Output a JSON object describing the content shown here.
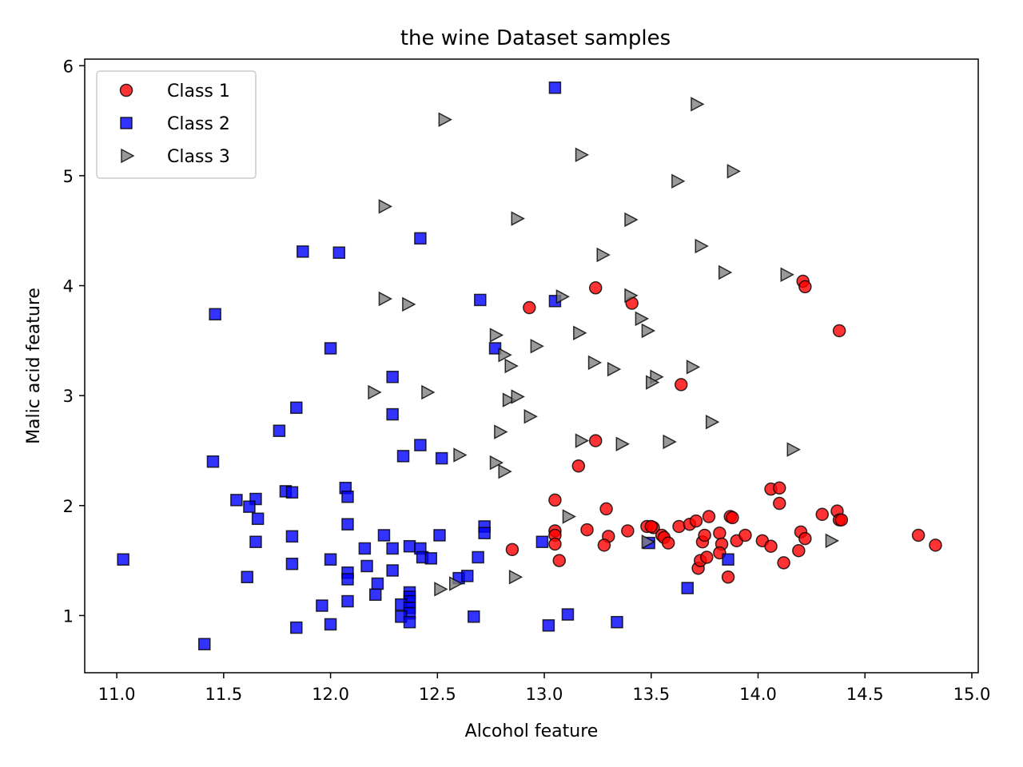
{
  "chart_data": {
    "type": "scatter",
    "title": "the wine Dataset samples",
    "xlabel": "Alcohol feature",
    "ylabel": "Malic acid feature",
    "xlim": [
      10.85,
      15.03
    ],
    "ylim": [
      0.48,
      6.06
    ],
    "xticks": [
      "11.0",
      "11.5",
      "12.0",
      "12.5",
      "13.0",
      "13.5",
      "14.0",
      "14.5",
      "15.0"
    ],
    "yticks": [
      "1",
      "2",
      "3",
      "4",
      "5",
      "6"
    ],
    "grid": false,
    "legend_position": "top-left",
    "series": [
      {
        "name": "Class 1",
        "marker": "circle",
        "color": "#ff0000",
        "points": [
          [
            12.93,
            3.8
          ],
          [
            13.24,
            3.98
          ],
          [
            13.41,
            3.84
          ],
          [
            14.21,
            4.04
          ],
          [
            14.22,
            3.99
          ],
          [
            14.38,
            3.59
          ],
          [
            13.64,
            3.1
          ],
          [
            13.24,
            2.59
          ],
          [
            13.16,
            2.36
          ],
          [
            14.06,
            2.15
          ],
          [
            14.1,
            2.16
          ],
          [
            14.1,
            2.02
          ],
          [
            13.05,
            2.05
          ],
          [
            13.05,
            1.77
          ],
          [
            13.05,
            1.73
          ],
          [
            13.05,
            1.65
          ],
          [
            13.07,
            1.5
          ],
          [
            12.85,
            1.6
          ],
          [
            13.2,
            1.78
          ],
          [
            13.29,
            1.97
          ],
          [
            13.3,
            1.72
          ],
          [
            13.28,
            1.64
          ],
          [
            13.39,
            1.77
          ],
          [
            13.48,
            1.81
          ],
          [
            13.51,
            1.8
          ],
          [
            13.5,
            1.81
          ],
          [
            13.55,
            1.73
          ],
          [
            13.56,
            1.71
          ],
          [
            13.58,
            1.66
          ],
          [
            13.63,
            1.81
          ],
          [
            13.68,
            1.83
          ],
          [
            13.71,
            1.86
          ],
          [
            13.72,
            1.43
          ],
          [
            13.73,
            1.5
          ],
          [
            13.74,
            1.67
          ],
          [
            13.75,
            1.73
          ],
          [
            13.76,
            1.53
          ],
          [
            13.77,
            1.9
          ],
          [
            13.82,
            1.75
          ],
          [
            13.83,
            1.65
          ],
          [
            13.82,
            1.57
          ],
          [
            13.86,
            1.35
          ],
          [
            13.87,
            1.9
          ],
          [
            13.88,
            1.89
          ],
          [
            13.9,
            1.68
          ],
          [
            13.94,
            1.73
          ],
          [
            14.02,
            1.68
          ],
          [
            14.06,
            1.63
          ],
          [
            14.12,
            1.48
          ],
          [
            14.19,
            1.59
          ],
          [
            14.2,
            1.76
          ],
          [
            14.22,
            1.7
          ],
          [
            14.3,
            1.92
          ],
          [
            14.37,
            1.95
          ],
          [
            14.38,
            1.87
          ],
          [
            14.39,
            1.87
          ],
          [
            14.75,
            1.73
          ],
          [
            14.83,
            1.64
          ]
        ]
      },
      {
        "name": "Class 2",
        "marker": "square",
        "color": "#0000ff",
        "points": [
          [
            13.05,
            5.8
          ],
          [
            12.42,
            4.43
          ],
          [
            11.87,
            4.31
          ],
          [
            12.04,
            4.3
          ],
          [
            11.46,
            3.74
          ],
          [
            12.7,
            3.87
          ],
          [
            13.05,
            3.86
          ],
          [
            12.0,
            3.43
          ],
          [
            12.77,
            3.43
          ],
          [
            12.29,
            3.17
          ],
          [
            11.84,
            2.89
          ],
          [
            12.29,
            2.83
          ],
          [
            11.76,
            2.68
          ],
          [
            12.42,
            2.55
          ],
          [
            12.34,
            2.45
          ],
          [
            12.52,
            2.43
          ],
          [
            11.45,
            2.4
          ],
          [
            12.07,
            2.16
          ],
          [
            11.79,
            2.13
          ],
          [
            11.82,
            2.12
          ],
          [
            12.08,
            2.08
          ],
          [
            11.65,
            2.06
          ],
          [
            11.56,
            2.05
          ],
          [
            11.62,
            1.99
          ],
          [
            11.66,
            1.88
          ],
          [
            12.08,
            1.83
          ],
          [
            12.72,
            1.81
          ],
          [
            12.72,
            1.75
          ],
          [
            11.82,
            1.72
          ],
          [
            12.25,
            1.73
          ],
          [
            12.51,
            1.73
          ],
          [
            11.65,
            1.67
          ],
          [
            12.99,
            1.67
          ],
          [
            13.49,
            1.66
          ],
          [
            12.16,
            1.61
          ],
          [
            12.29,
            1.61
          ],
          [
            12.37,
            1.63
          ],
          [
            12.42,
            1.61
          ],
          [
            12.43,
            1.53
          ],
          [
            12.47,
            1.52
          ],
          [
            12.69,
            1.53
          ],
          [
            12.0,
            1.51
          ],
          [
            13.86,
            1.51
          ],
          [
            11.03,
            1.51
          ],
          [
            11.82,
            1.47
          ],
          [
            12.17,
            1.45
          ],
          [
            12.29,
            1.41
          ],
          [
            11.61,
            1.35
          ],
          [
            12.08,
            1.39
          ],
          [
            12.08,
            1.33
          ],
          [
            12.6,
            1.34
          ],
          [
            12.64,
            1.36
          ],
          [
            12.22,
            1.29
          ],
          [
            13.67,
            1.25
          ],
          [
            12.21,
            1.19
          ],
          [
            12.37,
            1.21
          ],
          [
            12.37,
            1.17
          ],
          [
            12.37,
            1.13
          ],
          [
            11.96,
            1.09
          ],
          [
            12.33,
            1.1
          ],
          [
            12.37,
            1.07
          ],
          [
            12.08,
            1.13
          ],
          [
            12.37,
            1.02
          ],
          [
            13.11,
            1.01
          ],
          [
            12.33,
            0.99
          ],
          [
            12.67,
            0.99
          ],
          [
            12.37,
            0.94
          ],
          [
            13.34,
            0.94
          ],
          [
            12.0,
            0.92
          ],
          [
            13.02,
            0.91
          ],
          [
            11.84,
            0.89
          ],
          [
            11.41,
            0.74
          ]
        ]
      },
      {
        "name": "Class 3",
        "marker": "triangle-right",
        "color": "#808080",
        "points": [
          [
            13.71,
            5.65
          ],
          [
            12.53,
            5.51
          ],
          [
            13.17,
            5.19
          ],
          [
            13.88,
            5.04
          ],
          [
            13.62,
            4.95
          ],
          [
            12.25,
            4.72
          ],
          [
            12.87,
            4.61
          ],
          [
            13.4,
            4.6
          ],
          [
            13.73,
            4.36
          ],
          [
            13.27,
            4.28
          ],
          [
            13.84,
            4.12
          ],
          [
            14.13,
            4.1
          ],
          [
            13.08,
            3.9
          ],
          [
            13.4,
            3.91
          ],
          [
            12.25,
            3.88
          ],
          [
            12.36,
            3.83
          ],
          [
            13.45,
            3.7
          ],
          [
            13.48,
            3.59
          ],
          [
            12.77,
            3.55
          ],
          [
            13.16,
            3.57
          ],
          [
            12.96,
            3.45
          ],
          [
            12.81,
            3.37
          ],
          [
            12.84,
            3.27
          ],
          [
            13.23,
            3.3
          ],
          [
            13.32,
            3.24
          ],
          [
            13.69,
            3.26
          ],
          [
            13.52,
            3.17
          ],
          [
            13.5,
            3.12
          ],
          [
            12.2,
            3.03
          ],
          [
            12.45,
            3.03
          ],
          [
            12.83,
            2.96
          ],
          [
            12.87,
            2.99
          ],
          [
            12.93,
            2.81
          ],
          [
            13.78,
            2.76
          ],
          [
            12.79,
            2.67
          ],
          [
            13.17,
            2.59
          ],
          [
            13.36,
            2.56
          ],
          [
            13.58,
            2.58
          ],
          [
            14.16,
            2.51
          ],
          [
            12.6,
            2.46
          ],
          [
            12.77,
            2.39
          ],
          [
            12.81,
            2.31
          ],
          [
            13.11,
            1.9
          ],
          [
            13.48,
            1.67
          ],
          [
            14.34,
            1.68
          ],
          [
            12.86,
            1.35
          ],
          [
            12.58,
            1.29
          ],
          [
            12.51,
            1.24
          ]
        ]
      }
    ]
  }
}
